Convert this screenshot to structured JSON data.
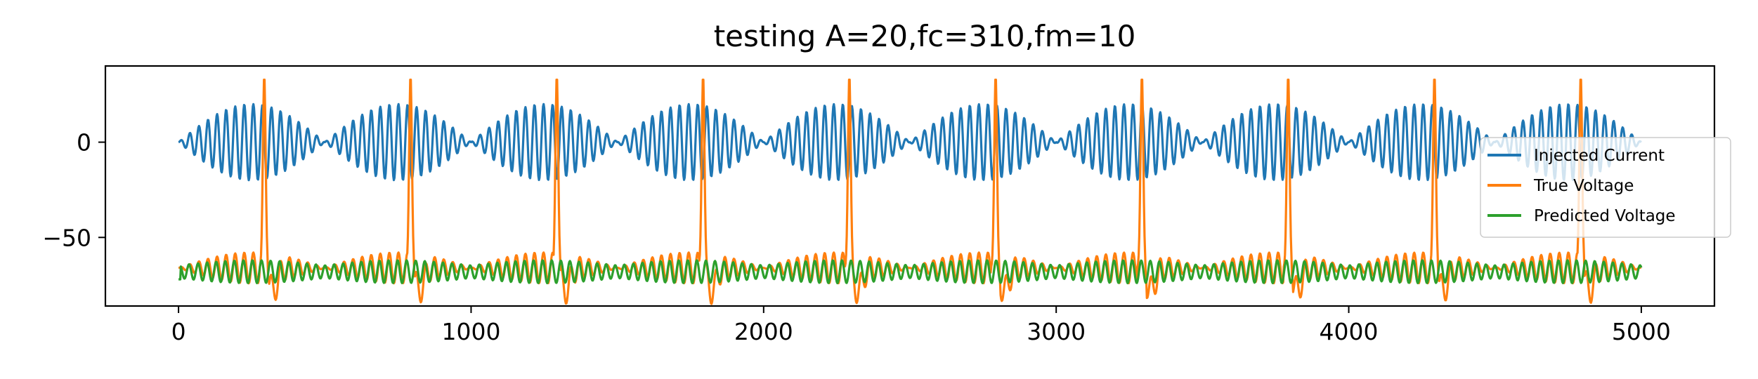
{
  "chart_data": {
    "type": "line",
    "title": "testing A=20,fc=310,fm=10",
    "xlabel": "",
    "ylabel": "",
    "xlim": [
      -250,
      5250
    ],
    "ylim": [
      -86,
      40
    ],
    "x_ticks": [
      0,
      1000,
      2000,
      3000,
      4000,
      5000
    ],
    "x_tick_labels": [
      "0",
      "1000",
      "2000",
      "3000",
      "4000",
      "5000"
    ],
    "y_ticks": [
      0,
      -50
    ],
    "y_tick_labels": [
      "0",
      "−50"
    ],
    "grid": false,
    "legend_position": "right",
    "x_range": [
      0,
      5000
    ],
    "series": [
      {
        "name": "Injected Current",
        "color": "#1f77b4",
        "model": "amplitude-modulated sine",
        "amplitude": 20,
        "offset": 0,
        "carrier_period": 31,
        "envelope_period": 500
      },
      {
        "name": "True Voltage",
        "color": "#ff7f0e",
        "model": "subthreshold oscillation with periodic spikes",
        "baseline": -66,
        "oscillation_amplitude": 9,
        "spike_peak": 35,
        "spike_trough": -79,
        "spike_times": [
          293,
          793,
          1293,
          1793,
          2293,
          2793,
          3293,
          3793,
          4293,
          4793
        ]
      },
      {
        "name": "Predicted Voltage",
        "color": "#2ca02c",
        "model": "subthreshold oscillation",
        "baseline": -68,
        "oscillation_amplitude": 6,
        "start_value": -72
      }
    ]
  }
}
